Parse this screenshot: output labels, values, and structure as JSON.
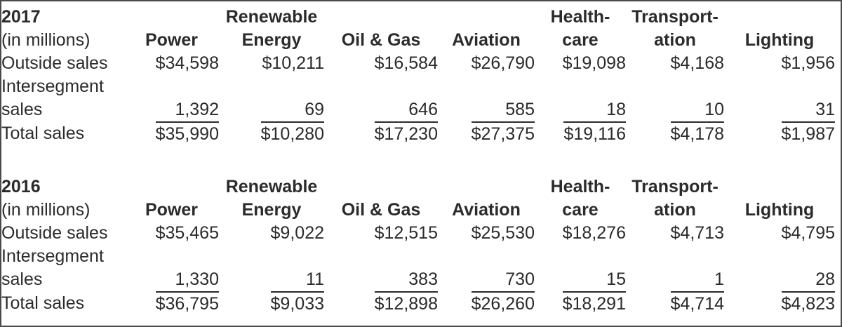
{
  "style": {
    "text_color": "#2b2b2b",
    "rule_color": "#2b2b2b",
    "border_color": "#4a4a4a",
    "background": "#ffffff"
  },
  "row_labels": {
    "outside": "Outside sales",
    "intersegment_line1": "Intersegment",
    "intersegment_line2": "sales",
    "total": "Total sales"
  },
  "sections": [
    {
      "year": "2017",
      "unit_label": "(in millions)",
      "columns": [
        {
          "header_line1": "",
          "header_line2": "Power",
          "outside": "$34,598",
          "intersegment": "1,392",
          "total": "$35,990"
        },
        {
          "header_line1": "Renewable",
          "header_line2": "Energy",
          "outside": "$10,211",
          "intersegment": "69",
          "total": "$10,280"
        },
        {
          "header_line1": "",
          "header_line2": "Oil & Gas",
          "outside": "$16,584",
          "intersegment": "646",
          "total": "$17,230"
        },
        {
          "header_line1": "",
          "header_line2": "Aviation",
          "outside": "$26,790",
          "intersegment": "585",
          "total": "$27,375"
        },
        {
          "header_line1": "Health-",
          "header_line2": "care",
          "outside": "$19,098",
          "intersegment": "18",
          "total": "$19,116"
        },
        {
          "header_line1": "Transport-",
          "header_line2": "ation",
          "outside": "$4,168",
          "intersegment": "10",
          "total": "$4,178"
        },
        {
          "header_line1": "",
          "header_line2": "Lighting",
          "outside": "$1,956",
          "intersegment": "31",
          "total": "$1,987"
        }
      ]
    },
    {
      "year": "2016",
      "unit_label": "(in millions)",
      "columns": [
        {
          "header_line1": "",
          "header_line2": "Power",
          "outside": "$35,465",
          "intersegment": "1,330",
          "total": "$36,795"
        },
        {
          "header_line1": "Renewable",
          "header_line2": "Energy",
          "outside": "$9,022",
          "intersegment": "11",
          "total": "$9,033"
        },
        {
          "header_line1": "",
          "header_line2": "Oil & Gas",
          "outside": "$12,515",
          "intersegment": "383",
          "total": "$12,898"
        },
        {
          "header_line1": "",
          "header_line2": "Aviation",
          "outside": "$25,530",
          "intersegment": "730",
          "total": "$26,260"
        },
        {
          "header_line1": "Health-",
          "header_line2": "care",
          "outside": "$18,276",
          "intersegment": "15",
          "total": "$18,291"
        },
        {
          "header_line1": "Transport-",
          "header_line2": "ation",
          "outside": "$4,713",
          "intersegment": "1",
          "total": "$4,714"
        },
        {
          "header_line1": "",
          "header_line2": "Lighting",
          "outside": "$4,795",
          "intersegment": "28",
          "total": "$4,823"
        }
      ]
    }
  ]
}
